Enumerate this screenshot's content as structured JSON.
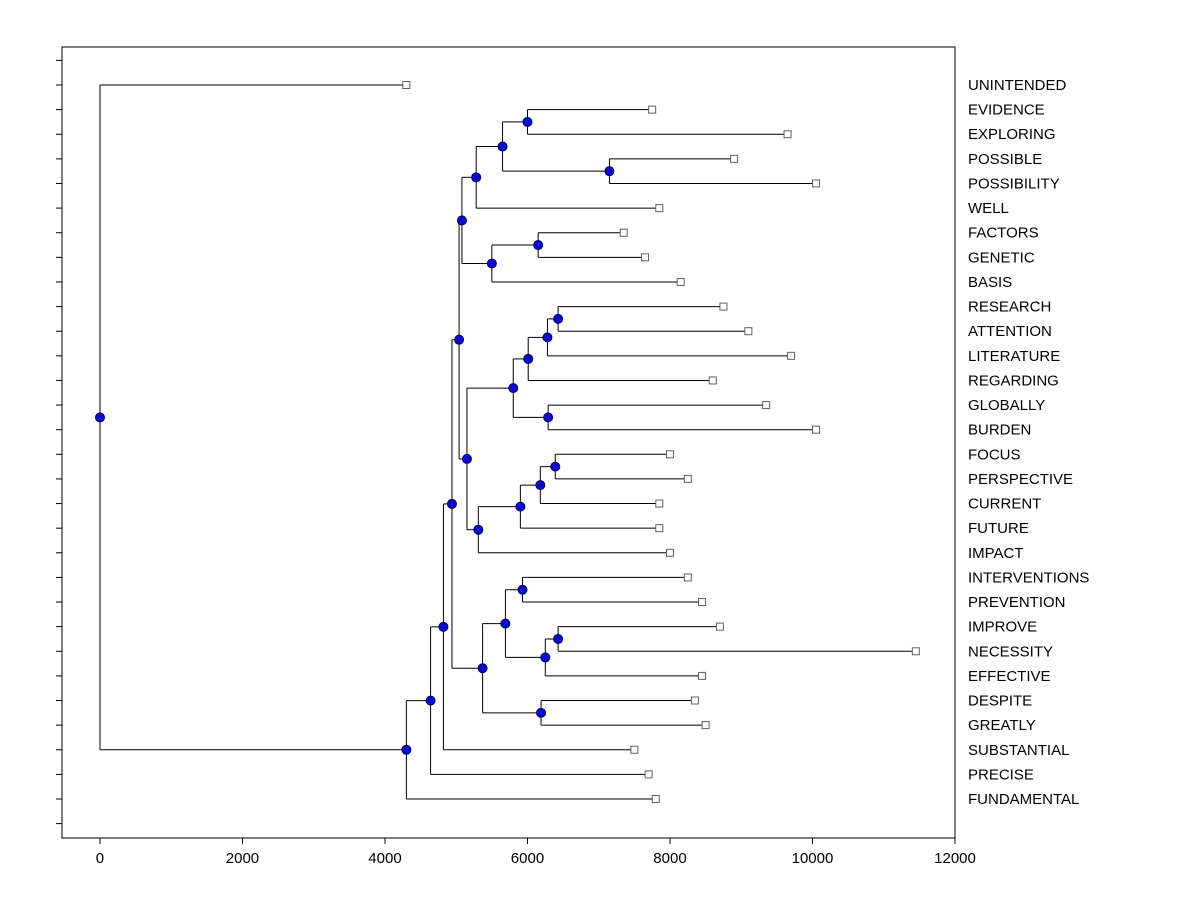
{
  "figure": {
    "background": "#ffffff"
  },
  "chart_data": {
    "type": "dendrogram",
    "orientation": "horizontal",
    "title": "",
    "xlabel": "",
    "ylabel": "",
    "xlim": [
      -533,
      12000
    ],
    "x_ticks": [
      0,
      2000,
      4000,
      6000,
      8000,
      10000,
      12000
    ],
    "x_tick_labels": [
      "0",
      "2000",
      "4000",
      "6000",
      "8000",
      "10000",
      "12000"
    ],
    "grid": false,
    "legend": "none",
    "line_color": "#000000",
    "node_color": "#0a0ad0",
    "node_edge_color": "#000060",
    "leaf_marker_fill": "#ffffff",
    "leaf_marker_edge": "#606060",
    "leaf_marker": "open-square",
    "node_marker": "filled-circle",
    "leaf_labels": [
      "UNINTENDED",
      "EVIDENCE",
      "EXPLORING",
      "POSSIBLE",
      "POSSIBILITY",
      "WELL",
      "FACTORS",
      "GENETIC",
      "BASIS",
      "RESEARCH",
      "ATTENTION",
      "LITERATURE",
      "REGARDING",
      "GLOBALLY",
      "BURDEN",
      "FOCUS",
      "PERSPECTIVE",
      "CURRENT",
      "FUTURE",
      "IMPACT",
      "INTERVENTIONS",
      "PREVENTION",
      "IMPROVE",
      "NECESSITY",
      "EFFECTIVE",
      "DESPITE",
      "GREATLY",
      "SUBSTANTIAL",
      "PRECISE",
      "FUNDAMENTAL"
    ],
    "tree": {
      "x": 0,
      "children": [
        {
          "name": "UNINTENDED",
          "x": 4300
        },
        {
          "x": 4300,
          "children": [
            {
              "x": 4640,
              "children": [
                {
                  "x": 4820,
                  "children": [
                    {
                      "x": 4940,
                      "children": [
                        {
                          "x": 5040,
                          "children": [
                            {
                              "x": 5080,
                              "children": [
                                {
                                  "x": 5280,
                                  "children": [
                                    {
                                      "x": 5650,
                                      "children": [
                                        {
                                          "x": 6000,
                                          "children": [
                                            {
                                              "name": "EVIDENCE",
                                              "x": 7750
                                            },
                                            {
                                              "name": "EXPLORING",
                                              "x": 9650
                                            }
                                          ]
                                        },
                                        {
                                          "x": 7150,
                                          "children": [
                                            {
                                              "name": "POSSIBLE",
                                              "x": 8900
                                            },
                                            {
                                              "name": "POSSIBILITY",
                                              "x": 10050
                                            }
                                          ]
                                        }
                                      ]
                                    },
                                    {
                                      "name": "WELL",
                                      "x": 7850
                                    }
                                  ]
                                },
                                {
                                  "x": 5500,
                                  "children": [
                                    {
                                      "x": 6150,
                                      "children": [
                                        {
                                          "name": "FACTORS",
                                          "x": 7350
                                        },
                                        {
                                          "name": "GENETIC",
                                          "x": 7650
                                        }
                                      ]
                                    },
                                    {
                                      "name": "BASIS",
                                      "x": 8150
                                    }
                                  ]
                                }
                              ]
                            },
                            {
                              "x": 5150,
                              "children": [
                                {
                                  "x": 5800,
                                  "children": [
                                    {
                                      "x": 6010,
                                      "children": [
                                        {
                                          "x": 6280,
                                          "children": [
                                            {
                                              "x": 6430,
                                              "children": [
                                                {
                                                  "name": "RESEARCH",
                                                  "x": 8750
                                                },
                                                {
                                                  "name": "ATTENTION",
                                                  "x": 9100
                                                }
                                              ]
                                            },
                                            {
                                              "name": "LITERATURE",
                                              "x": 9700
                                            }
                                          ]
                                        },
                                        {
                                          "name": "REGARDING",
                                          "x": 8600
                                        }
                                      ]
                                    },
                                    {
                                      "x": 6290,
                                      "children": [
                                        {
                                          "name": "GLOBALLY",
                                          "x": 9350
                                        },
                                        {
                                          "name": "BURDEN",
                                          "x": 10050
                                        }
                                      ]
                                    }
                                  ]
                                },
                                {
                                  "x": 5310,
                                  "children": [
                                    {
                                      "x": 5900,
                                      "children": [
                                        {
                                          "x": 6180,
                                          "children": [
                                            {
                                              "x": 6390,
                                              "children": [
                                                {
                                                  "name": "FOCUS",
                                                  "x": 8000
                                                },
                                                {
                                                  "name": "PERSPECTIVE",
                                                  "x": 8250
                                                }
                                              ]
                                            },
                                            {
                                              "name": "CURRENT",
                                              "x": 7850
                                            }
                                          ]
                                        },
                                        {
                                          "name": "FUTURE",
                                          "x": 7850
                                        }
                                      ]
                                    },
                                    {
                                      "name": "IMPACT",
                                      "x": 8000
                                    }
                                  ]
                                }
                              ]
                            }
                          ]
                        },
                        {
                          "x": 5370,
                          "children": [
                            {
                              "x": 5690,
                              "children": [
                                {
                                  "x": 5930,
                                  "children": [
                                    {
                                      "name": "INTERVENTIONS",
                                      "x": 8250
                                    },
                                    {
                                      "name": "PREVENTION",
                                      "x": 8450
                                    }
                                  ]
                                },
                                {
                                  "x": 6250,
                                  "children": [
                                    {
                                      "x": 6430,
                                      "children": [
                                        {
                                          "name": "IMPROVE",
                                          "x": 8700
                                        },
                                        {
                                          "name": "NECESSITY",
                                          "x": 11450
                                        }
                                      ]
                                    },
                                    {
                                      "name": "EFFECTIVE",
                                      "x": 8450
                                    }
                                  ]
                                }
                              ]
                            },
                            {
                              "x": 6190,
                              "children": [
                                {
                                  "name": "DESPITE",
                                  "x": 8350
                                },
                                {
                                  "name": "GREATLY",
                                  "x": 8500
                                }
                              ]
                            }
                          ]
                        }
                      ]
                    },
                    {
                      "name": "SUBSTANTIAL",
                      "x": 7500
                    }
                  ]
                },
                {
                  "name": "PRECISE",
                  "x": 7700
                }
              ]
            },
            {
              "name": "FUNDAMENTAL",
              "x": 7800
            }
          ]
        }
      ]
    }
  }
}
